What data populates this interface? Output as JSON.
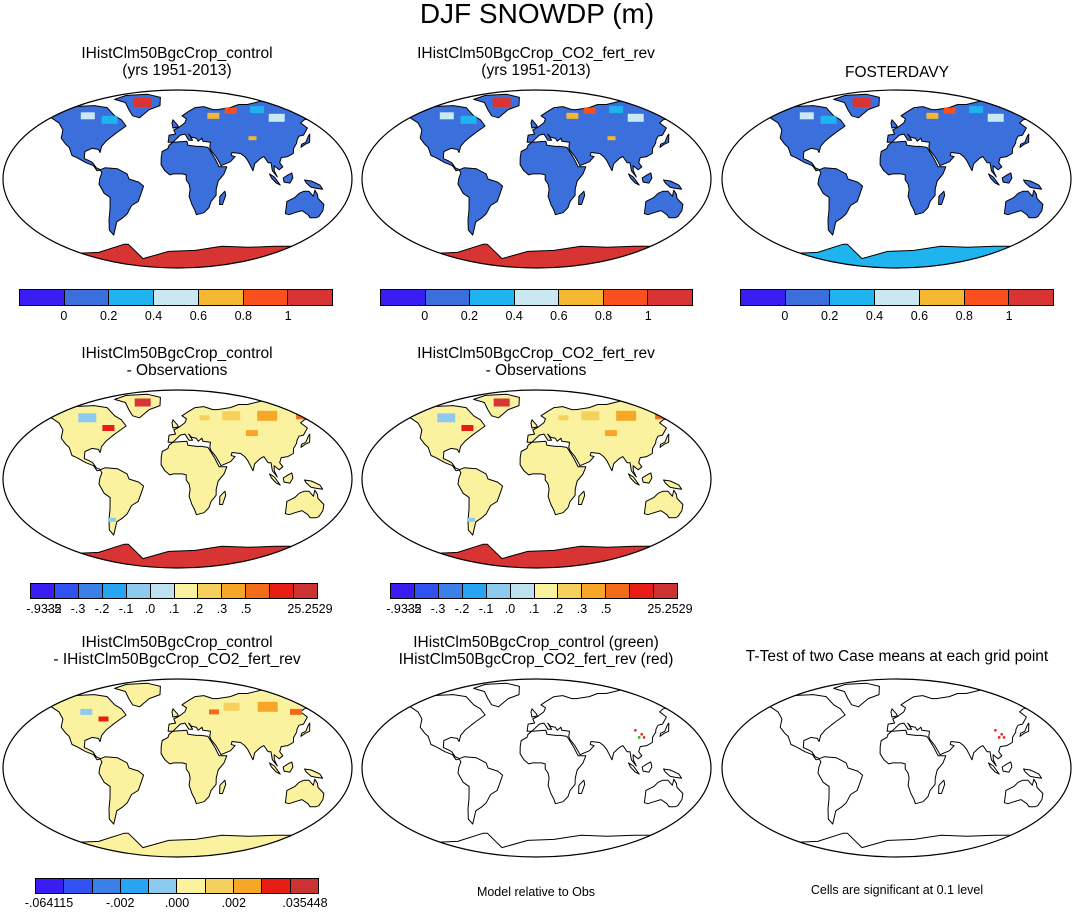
{
  "title": "DJF SNOWDP (m)",
  "colors": {
    "map_border": "#000000",
    "abs_scale": [
      "#3a1df2",
      "#3b6fdc",
      "#1fb3f0",
      "#c9e8f2",
      "#f5b731",
      "#fb4f1e",
      "#d83434"
    ],
    "diff_scale": [
      "#3a1df2",
      "#2f52f0",
      "#3b80e8",
      "#29a4f3",
      "#8dcaf0",
      "#bfe0ef",
      "#fbf29f",
      "#f6d05c",
      "#f7a727",
      "#f36c1c",
      "#e81d16",
      "#cc3232"
    ]
  },
  "panels": [
    {
      "title_lines": [
        "IHistClm50BgcCrop_control",
        "(yrs 1951-2013)"
      ],
      "fill": "abs",
      "land_color": "#3b6fdc",
      "antarctica_color": "#d83434"
    },
    {
      "title_lines": [
        "IHistClm50BgcCrop_CO2_fert_rev",
        "(yrs 1951-2013)"
      ],
      "fill": "abs",
      "land_color": "#3b6fdc",
      "antarctica_color": "#d83434"
    },
    {
      "title_lines": [
        "FOSTERDAVY"
      ],
      "fill": "abs",
      "land_color": "#3b6fdc",
      "antarctica_color": "#1fb3f0"
    },
    {
      "title_lines": [
        "IHistClm50BgcCrop_control",
        "- Observations"
      ],
      "fill": "diff",
      "land_color": "#fbf29f",
      "antarctica_color": "#d83434"
    },
    {
      "title_lines": [
        "IHistClm50BgcCrop_CO2_fert_rev",
        "- Observations"
      ],
      "fill": "diff",
      "land_color": "#fbf29f",
      "antarctica_color": "#d83434"
    },
    {
      "title_lines": [
        "IHistClm50BgcCrop_control",
        "- IHistClm50BgcCrop_CO2_fert_rev"
      ],
      "fill": "diff",
      "land_color": "#fbf29f",
      "antarctica_color": "#fbf29f"
    },
    {
      "title_lines": [
        "IHistClm50BgcCrop_control (green)",
        "IHistClm50BgcCrop_CO2_fert_rev (red)"
      ],
      "fill": "outline",
      "land_color": "#ffffff",
      "antarctica_color": "#ffffff"
    },
    {
      "title_lines": [
        "T-Test of two Case means at each grid point"
      ],
      "fill": "outline",
      "land_color": "#ffffff",
      "antarctica_color": "#ffffff"
    }
  ],
  "colorbars": {
    "abs": {
      "labels": [
        "0",
        "0.2",
        "0.4",
        "0.6",
        "0.8",
        "1"
      ]
    },
    "diff_obs": {
      "labels": [
        "-.9332",
        "-.5",
        "-.3",
        "-.2",
        "-.1",
        ".0",
        ".1",
        ".2",
        ".3",
        ".5",
        "25.2529"
      ]
    },
    "diff_case": {
      "labels": [
        "-.064115",
        "-.002",
        ".000",
        ".002",
        ".035448"
      ]
    }
  },
  "notes": {
    "model_relative": "Model relative to Obs",
    "significance": "Cells are significant at 0.1 level"
  }
}
